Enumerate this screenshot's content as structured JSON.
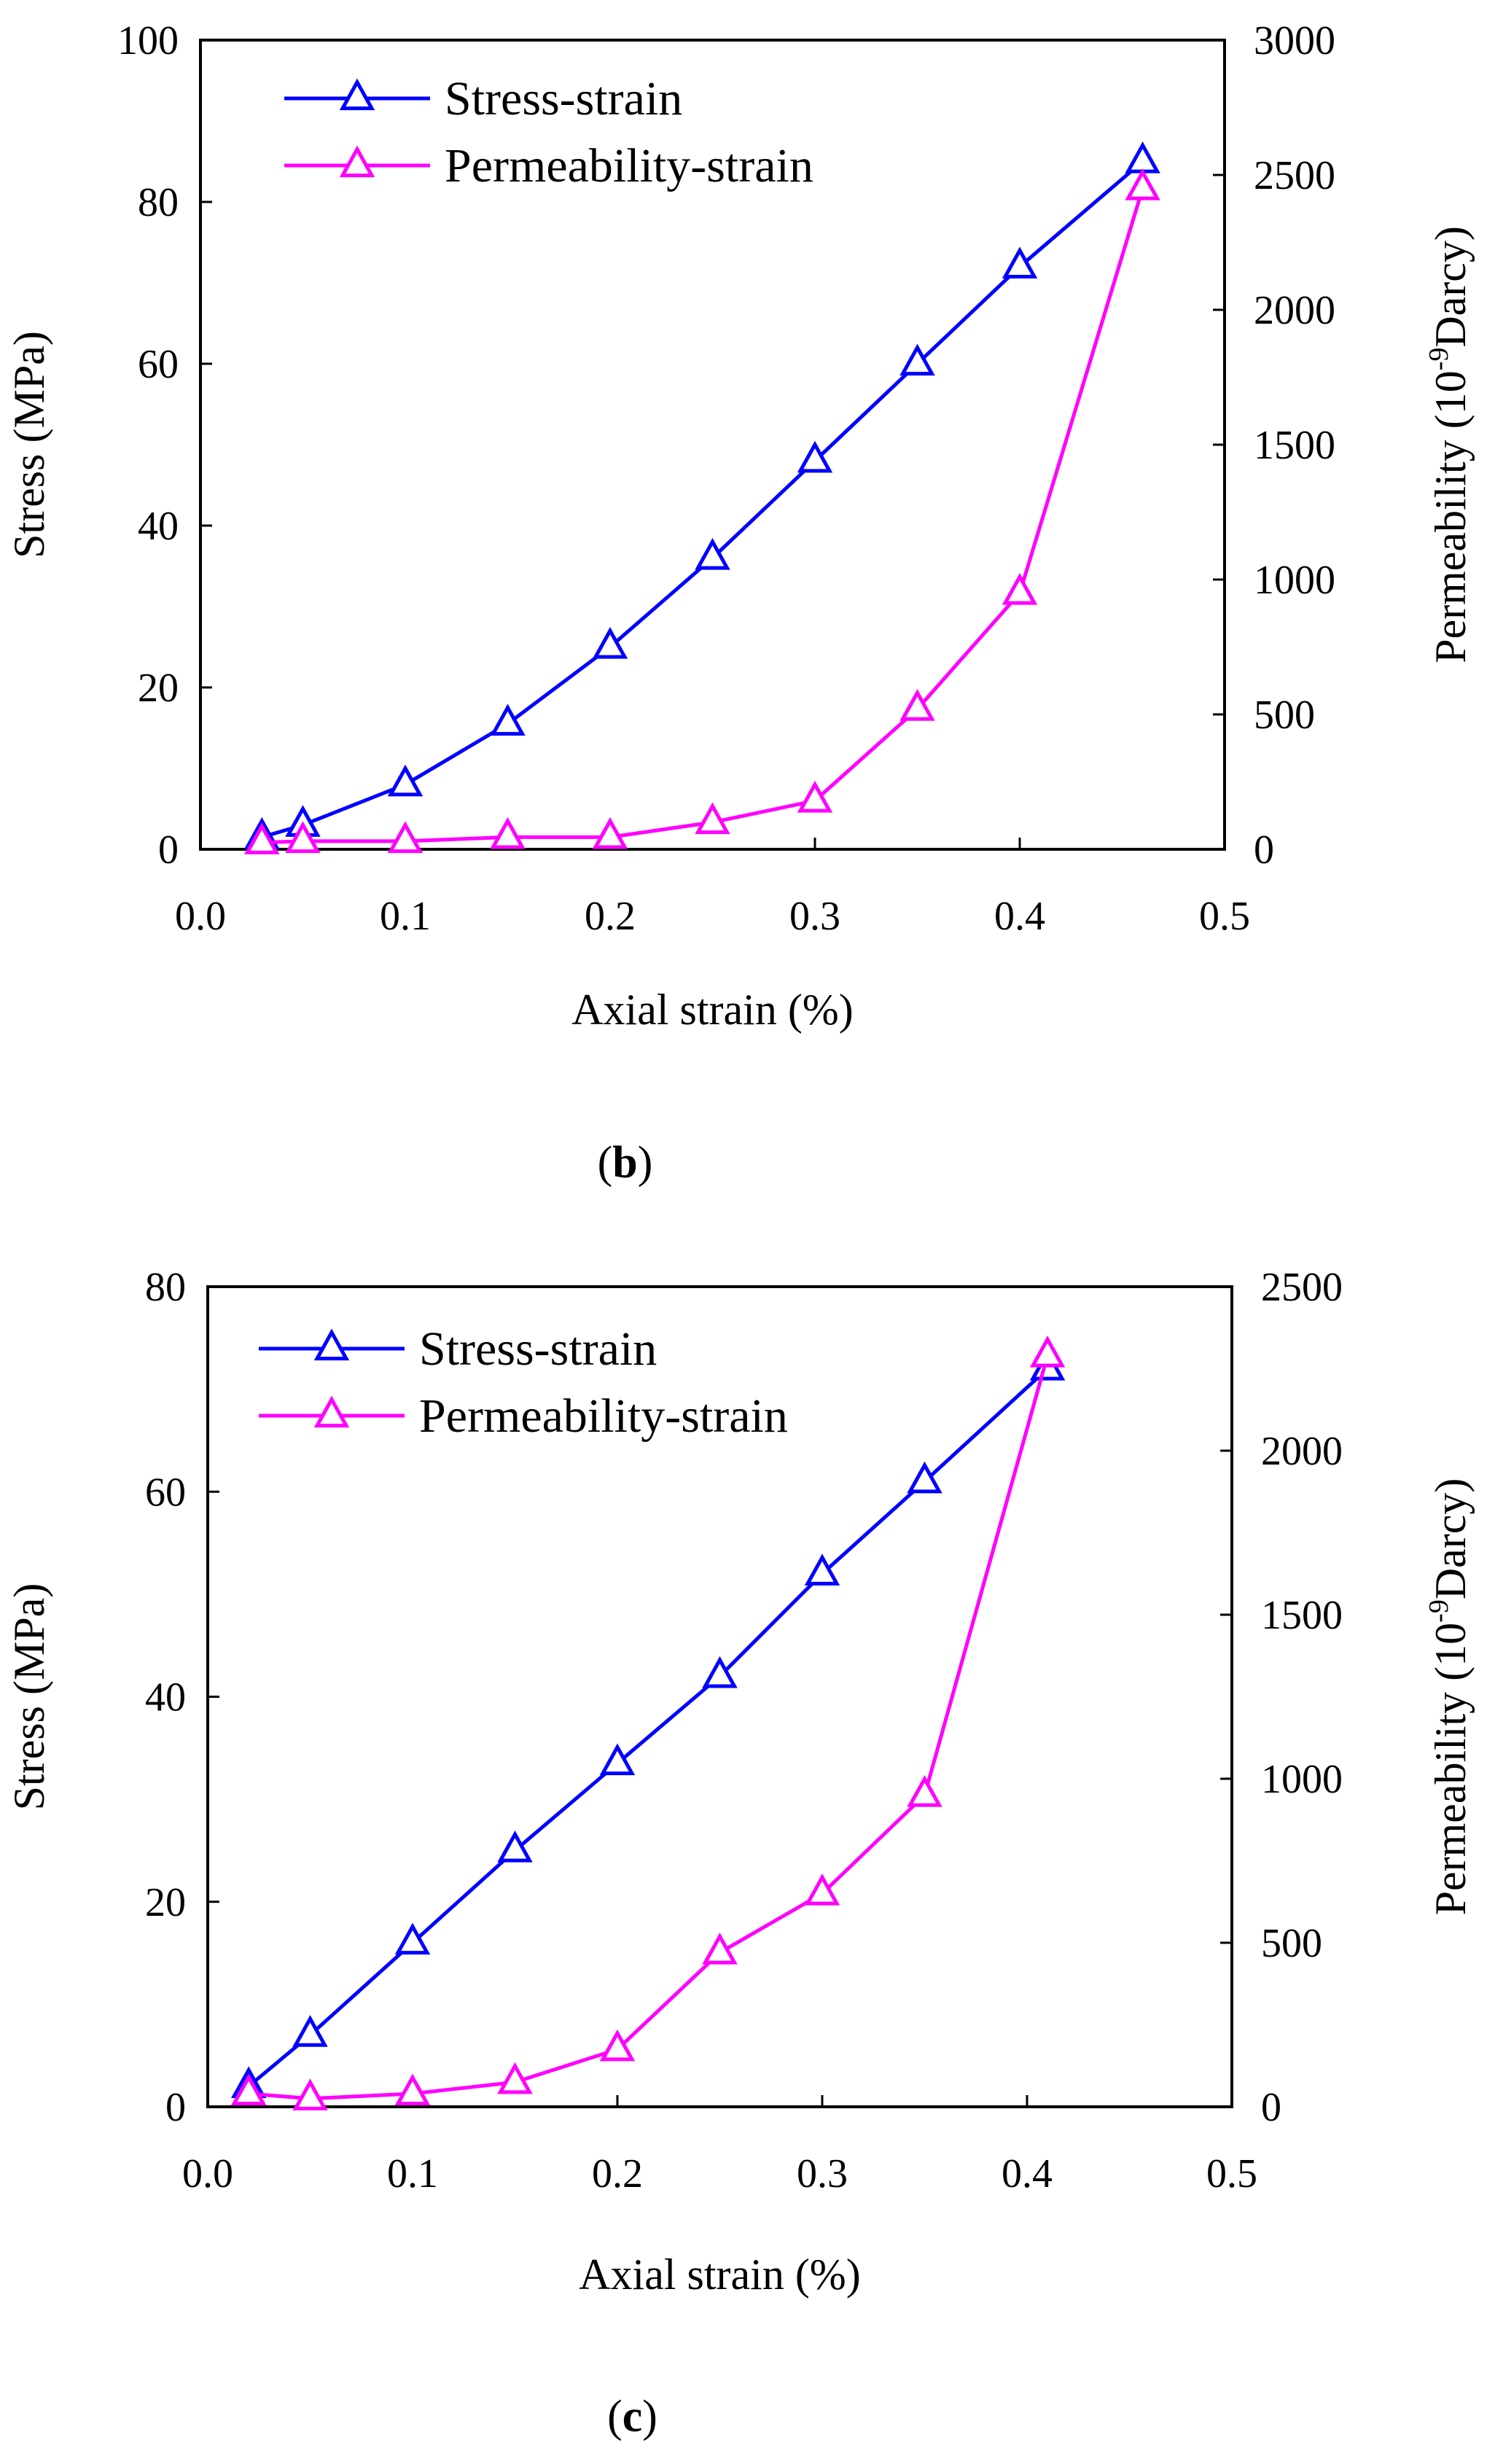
{
  "chart_data": [
    {
      "type": "line",
      "panel_label": "b",
      "xlabel": "Axial strain (%)",
      "ylabel": "Stress (MPa)",
      "y2label_prefix": "Permeability (10",
      "y2label_exp": "-9",
      "y2label_suffix": "Darcy)",
      "xlim": [
        0,
        0.5
      ],
      "ylim": [
        0,
        100
      ],
      "y2lim": [
        0,
        3000
      ],
      "xticks": [
        "0.0",
        "0.1",
        "0.2",
        "0.3",
        "0.4",
        "0.5"
      ],
      "yticks": [
        "0",
        "20",
        "40",
        "60",
        "80",
        "100"
      ],
      "y2ticks": [
        "0",
        "500",
        "1000",
        "1500",
        "2000",
        "2500",
        "3000"
      ],
      "legend": [
        "Stress-strain",
        "Permeability-strain"
      ],
      "series": [
        {
          "name": "Stress-strain",
          "axis": "left",
          "color": "#0000ff",
          "x": [
            0.03,
            0.05,
            0.1,
            0.15,
            0.2,
            0.25,
            0.3,
            0.35,
            0.4,
            0.46
          ],
          "y": [
            1.5,
            3,
            8,
            15.5,
            25,
            36,
            48,
            60,
            72,
            85
          ]
        },
        {
          "name": "Permeability-strain",
          "axis": "right",
          "color": "#ff00ff",
          "x": [
            0.03,
            0.05,
            0.1,
            0.15,
            0.2,
            0.25,
            0.3,
            0.35,
            0.4,
            0.46
          ],
          "y": [
            25,
            30,
            30,
            45,
            45,
            100,
            180,
            520,
            950,
            2450
          ]
        }
      ]
    },
    {
      "type": "line",
      "panel_label": "c",
      "xlabel": "Axial strain (%)",
      "ylabel": "Stress (MPa)",
      "y2label_prefix": "Permeability (10",
      "y2label_exp": "-9",
      "y2label_suffix": "Darcy)",
      "xlim": [
        0,
        0.5
      ],
      "ylim": [
        0,
        80
      ],
      "y2lim": [
        0,
        2500
      ],
      "xticks": [
        "0.0",
        "0.1",
        "0.2",
        "0.3",
        "0.4",
        "0.5"
      ],
      "yticks": [
        "0",
        "20",
        "40",
        "60",
        "80"
      ],
      "y2ticks": [
        "0",
        "500",
        "1000",
        "1500",
        "2000",
        "2500"
      ],
      "legend": [
        "Stress-strain",
        "Permeability-strain"
      ],
      "series": [
        {
          "name": "Stress-strain",
          "axis": "left",
          "color": "#0000ff",
          "x": [
            0.02,
            0.05,
            0.1,
            0.15,
            0.2,
            0.25,
            0.3,
            0.35,
            0.41
          ],
          "y": [
            2,
            7,
            16,
            25,
            33.5,
            42,
            52,
            61,
            72
          ]
        },
        {
          "name": "Permeability-strain",
          "axis": "right",
          "color": "#ff00ff",
          "x": [
            0.02,
            0.05,
            0.1,
            0.15,
            0.2,
            0.25,
            0.3,
            0.35,
            0.41
          ],
          "y": [
            40,
            25,
            40,
            75,
            175,
            470,
            650,
            950,
            2290
          ]
        }
      ]
    }
  ]
}
